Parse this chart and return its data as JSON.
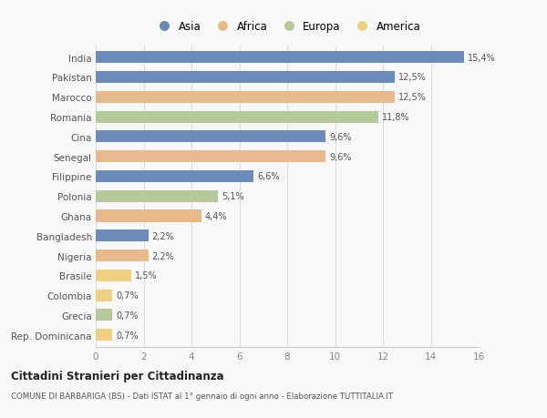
{
  "countries": [
    "India",
    "Pakistan",
    "Marocco",
    "Romania",
    "Cina",
    "Senegal",
    "Filippine",
    "Polonia",
    "Ghana",
    "Bangladesh",
    "Nigeria",
    "Brasile",
    "Colombia",
    "Grecia",
    "Rep. Dominicana"
  ],
  "values": [
    15.4,
    12.5,
    12.5,
    11.8,
    9.6,
    9.6,
    6.6,
    5.1,
    4.4,
    2.2,
    2.2,
    1.5,
    0.7,
    0.7,
    0.7
  ],
  "labels": [
    "15,4%",
    "12,5%",
    "12,5%",
    "11,8%",
    "9,6%",
    "9,6%",
    "6,6%",
    "5,1%",
    "4,4%",
    "2,2%",
    "2,2%",
    "1,5%",
    "0,7%",
    "0,7%",
    "0,7%"
  ],
  "continents": [
    "Asia",
    "Asia",
    "Africa",
    "Europa",
    "Asia",
    "Africa",
    "Asia",
    "Europa",
    "Africa",
    "Asia",
    "Africa",
    "America",
    "America",
    "Europa",
    "America"
  ],
  "colors": {
    "Asia": "#6b8cba",
    "Africa": "#e8b98a",
    "Europa": "#b5c99a",
    "America": "#f0d080"
  },
  "legend_order": [
    "Asia",
    "Africa",
    "Europa",
    "America"
  ],
  "title1": "Cittadini Stranieri per Cittadinanza",
  "title2": "COMUNE DI BARBARIGA (BS) - Dati ISTAT al 1° gennaio di ogni anno - Elaborazione TUTTITALIA.IT",
  "xlim": [
    0,
    16
  ],
  "xticks": [
    0,
    2,
    4,
    6,
    8,
    10,
    12,
    14,
    16
  ],
  "background_color": "#f8f8f8",
  "bar_height": 0.6
}
